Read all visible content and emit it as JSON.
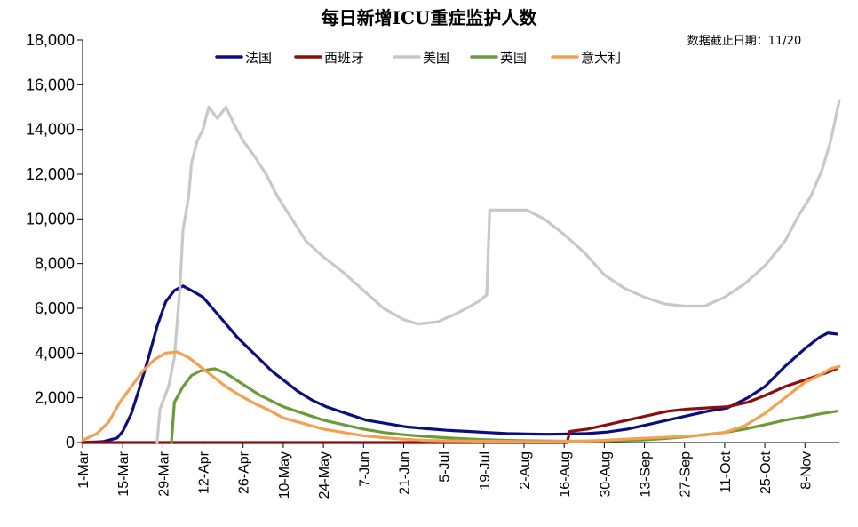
{
  "chart_data": {
    "type": "line",
    "title": "每日新增ICU重症监护人数",
    "annotation": "数据截止日期：11/20",
    "xlabel": "",
    "ylabel": "",
    "ylim": [
      0,
      18000
    ],
    "yticks": [
      0,
      2000,
      4000,
      6000,
      8000,
      10000,
      12000,
      14000,
      16000,
      18000
    ],
    "ytick_labels": [
      "0",
      "2,000",
      "4,000",
      "6,000",
      "8,000",
      "10,000",
      "12,000",
      "14,000",
      "16,000",
      "18,000"
    ],
    "xlim": [
      "2020-03-01",
      "2020-11-20"
    ],
    "xticks": [
      "2020-03-01",
      "2020-03-15",
      "2020-03-29",
      "2020-04-12",
      "2020-04-26",
      "2020-05-10",
      "2020-05-24",
      "2020-06-07",
      "2020-06-21",
      "2020-07-05",
      "2020-07-19",
      "2020-08-02",
      "2020-08-16",
      "2020-08-30",
      "2020-09-13",
      "2020-09-27",
      "2020-10-11",
      "2020-10-25",
      "2020-11-08"
    ],
    "xtick_labels": [
      "1-Mar",
      "15-Mar",
      "29-Mar",
      "12-Apr",
      "26-Apr",
      "10-May",
      "24-May",
      "7-Jun",
      "21-Jun",
      "5-Jul",
      "19-Jul",
      "2-Aug",
      "16-Aug",
      "30-Aug",
      "13-Sep",
      "27-Sep",
      "11-Oct",
      "25-Oct",
      "8-Nov"
    ],
    "grid": false,
    "legend_position": "top",
    "series": [
      {
        "name": "法国",
        "color": "#0d0d80",
        "points": [
          [
            "2020-03-01",
            0
          ],
          [
            "2020-03-08",
            40
          ],
          [
            "2020-03-13",
            200
          ],
          [
            "2020-03-15",
            500
          ],
          [
            "2020-03-18",
            1300
          ],
          [
            "2020-03-21",
            2500
          ],
          [
            "2020-03-24",
            3800
          ],
          [
            "2020-03-27",
            5200
          ],
          [
            "2020-03-30",
            6300
          ],
          [
            "2020-04-02",
            6800
          ],
          [
            "2020-04-05",
            7000
          ],
          [
            "2020-04-08",
            6800
          ],
          [
            "2020-04-12",
            6500
          ],
          [
            "2020-04-16",
            5900
          ],
          [
            "2020-04-20",
            5300
          ],
          [
            "2020-04-24",
            4700
          ],
          [
            "2020-04-28",
            4200
          ],
          [
            "2020-05-02",
            3700
          ],
          [
            "2020-05-06",
            3200
          ],
          [
            "2020-05-10",
            2800
          ],
          [
            "2020-05-15",
            2300
          ],
          [
            "2020-05-20",
            1900
          ],
          [
            "2020-05-25",
            1600
          ],
          [
            "2020-06-01",
            1300
          ],
          [
            "2020-06-08",
            1000
          ],
          [
            "2020-06-15",
            850
          ],
          [
            "2020-06-22",
            700
          ],
          [
            "2020-06-29",
            620
          ],
          [
            "2020-07-06",
            550
          ],
          [
            "2020-07-13",
            500
          ],
          [
            "2020-07-20",
            450
          ],
          [
            "2020-07-27",
            400
          ],
          [
            "2020-08-03",
            380
          ],
          [
            "2020-08-10",
            370
          ],
          [
            "2020-08-17",
            380
          ],
          [
            "2020-08-24",
            400
          ],
          [
            "2020-08-31",
            470
          ],
          [
            "2020-09-07",
            600
          ],
          [
            "2020-09-14",
            800
          ],
          [
            "2020-09-21",
            1000
          ],
          [
            "2020-09-28",
            1200
          ],
          [
            "2020-10-05",
            1400
          ],
          [
            "2020-10-12",
            1550
          ],
          [
            "2020-10-19",
            2000
          ],
          [
            "2020-10-25",
            2500
          ],
          [
            "2020-11-01",
            3400
          ],
          [
            "2020-11-08",
            4200
          ],
          [
            "2020-11-13",
            4700
          ],
          [
            "2020-11-16",
            4900
          ],
          [
            "2020-11-19",
            4850
          ]
        ]
      },
      {
        "name": "西班牙",
        "color": "#8b0e0e",
        "points": [
          [
            "2020-03-01",
            0
          ],
          [
            "2020-08-17",
            0
          ],
          [
            "2020-08-18",
            500
          ],
          [
            "2020-08-24",
            600
          ],
          [
            "2020-08-31",
            800
          ],
          [
            "2020-09-07",
            1000
          ],
          [
            "2020-09-14",
            1200
          ],
          [
            "2020-09-21",
            1400
          ],
          [
            "2020-09-28",
            1500
          ],
          [
            "2020-10-05",
            1550
          ],
          [
            "2020-10-12",
            1600
          ],
          [
            "2020-10-19",
            1800
          ],
          [
            "2020-10-25",
            2100
          ],
          [
            "2020-11-01",
            2500
          ],
          [
            "2020-11-08",
            2800
          ],
          [
            "2020-11-15",
            3100
          ],
          [
            "2020-11-19",
            3300
          ]
        ]
      },
      {
        "name": "美国",
        "color": "#c8c8c8",
        "points": [
          [
            "2020-03-27",
            0
          ],
          [
            "2020-03-28",
            1500
          ],
          [
            "2020-03-31",
            2500
          ],
          [
            "2020-04-02",
            3800
          ],
          [
            "2020-04-04",
            7000
          ],
          [
            "2020-04-05",
            9500
          ],
          [
            "2020-04-07",
            11000
          ],
          [
            "2020-04-08",
            12500
          ],
          [
            "2020-04-10",
            13500
          ],
          [
            "2020-04-12",
            14000
          ],
          [
            "2020-04-14",
            15000
          ],
          [
            "2020-04-17",
            14500
          ],
          [
            "2020-04-20",
            15000
          ],
          [
            "2020-04-23",
            14200
          ],
          [
            "2020-04-26",
            13500
          ],
          [
            "2020-04-30",
            12800
          ],
          [
            "2020-05-04",
            12000
          ],
          [
            "2020-05-08",
            11000
          ],
          [
            "2020-05-13",
            10000
          ],
          [
            "2020-05-18",
            9000
          ],
          [
            "2020-05-24",
            8300
          ],
          [
            "2020-05-31",
            7600
          ],
          [
            "2020-06-07",
            6800
          ],
          [
            "2020-06-14",
            6000
          ],
          [
            "2020-06-21",
            5500
          ],
          [
            "2020-06-26",
            5300
          ],
          [
            "2020-07-03",
            5400
          ],
          [
            "2020-07-10",
            5800
          ],
          [
            "2020-07-17",
            6300
          ],
          [
            "2020-07-20",
            6600
          ],
          [
            "2020-07-21",
            10400
          ],
          [
            "2020-07-27",
            10400
          ],
          [
            "2020-08-03",
            10400
          ],
          [
            "2020-08-09",
            10000
          ],
          [
            "2020-08-16",
            9300
          ],
          [
            "2020-08-23",
            8500
          ],
          [
            "2020-08-30",
            7500
          ],
          [
            "2020-09-06",
            6900
          ],
          [
            "2020-09-13",
            6500
          ],
          [
            "2020-09-20",
            6200
          ],
          [
            "2020-09-27",
            6100
          ],
          [
            "2020-10-04",
            6100
          ],
          [
            "2020-10-11",
            6500
          ],
          [
            "2020-10-18",
            7100
          ],
          [
            "2020-10-25",
            7900
          ],
          [
            "2020-11-01",
            9000
          ],
          [
            "2020-11-06",
            10200
          ],
          [
            "2020-11-10",
            11000
          ],
          [
            "2020-11-14",
            12200
          ],
          [
            "2020-11-17",
            13500
          ],
          [
            "2020-11-20",
            15300
          ]
        ]
      },
      {
        "name": "英国",
        "color": "#6b9a3a",
        "points": [
          [
            "2020-04-01",
            0
          ],
          [
            "2020-04-02",
            1800
          ],
          [
            "2020-04-05",
            2500
          ],
          [
            "2020-04-08",
            3000
          ],
          [
            "2020-04-11",
            3200
          ],
          [
            "2020-04-16",
            3300
          ],
          [
            "2020-04-20",
            3100
          ],
          [
            "2020-04-26",
            2600
          ],
          [
            "2020-05-02",
            2100
          ],
          [
            "2020-05-10",
            1600
          ],
          [
            "2020-05-17",
            1300
          ],
          [
            "2020-05-24",
            1000
          ],
          [
            "2020-05-31",
            800
          ],
          [
            "2020-06-07",
            600
          ],
          [
            "2020-06-14",
            450
          ],
          [
            "2020-06-21",
            350
          ],
          [
            "2020-06-28",
            280
          ],
          [
            "2020-07-05",
            220
          ],
          [
            "2020-07-12",
            170
          ],
          [
            "2020-07-19",
            130
          ],
          [
            "2020-07-26",
            100
          ],
          [
            "2020-08-02",
            80
          ],
          [
            "2020-08-09",
            70
          ],
          [
            "2020-08-16",
            60
          ],
          [
            "2020-08-23",
            60
          ],
          [
            "2020-08-30",
            70
          ],
          [
            "2020-09-06",
            90
          ],
          [
            "2020-09-13",
            120
          ],
          [
            "2020-09-20",
            180
          ],
          [
            "2020-09-27",
            250
          ],
          [
            "2020-10-04",
            350
          ],
          [
            "2020-10-11",
            450
          ],
          [
            "2020-10-18",
            600
          ],
          [
            "2020-10-25",
            800
          ],
          [
            "2020-11-01",
            1000
          ],
          [
            "2020-11-08",
            1150
          ],
          [
            "2020-11-14",
            1300
          ],
          [
            "2020-11-19",
            1400
          ]
        ]
      },
      {
        "name": "意大利",
        "color": "#f5a050",
        "points": [
          [
            "2020-03-01",
            100
          ],
          [
            "2020-03-06",
            400
          ],
          [
            "2020-03-10",
            900
          ],
          [
            "2020-03-14",
            1800
          ],
          [
            "2020-03-18",
            2500
          ],
          [
            "2020-03-22",
            3200
          ],
          [
            "2020-03-26",
            3700
          ],
          [
            "2020-03-30",
            4000
          ],
          [
            "2020-04-03",
            4050
          ],
          [
            "2020-04-07",
            3800
          ],
          [
            "2020-04-11",
            3400
          ],
          [
            "2020-04-15",
            3000
          ],
          [
            "2020-04-20",
            2500
          ],
          [
            "2020-04-25",
            2100
          ],
          [
            "2020-04-30",
            1750
          ],
          [
            "2020-05-05",
            1450
          ],
          [
            "2020-05-10",
            1100
          ],
          [
            "2020-05-17",
            850
          ],
          [
            "2020-05-24",
            600
          ],
          [
            "2020-05-31",
            450
          ],
          [
            "2020-06-07",
            300
          ],
          [
            "2020-06-14",
            220
          ],
          [
            "2020-06-21",
            150
          ],
          [
            "2020-06-28",
            100
          ],
          [
            "2020-07-05",
            80
          ],
          [
            "2020-07-12",
            70
          ],
          [
            "2020-07-19",
            60
          ],
          [
            "2020-07-26",
            50
          ],
          [
            "2020-08-02",
            45
          ],
          [
            "2020-08-09",
            45
          ],
          [
            "2020-08-16",
            55
          ],
          [
            "2020-08-23",
            70
          ],
          [
            "2020-08-30",
            100
          ],
          [
            "2020-09-06",
            150
          ],
          [
            "2020-09-13",
            190
          ],
          [
            "2020-09-20",
            230
          ],
          [
            "2020-09-27",
            280
          ],
          [
            "2020-10-04",
            330
          ],
          [
            "2020-10-11",
            450
          ],
          [
            "2020-10-18",
            750
          ],
          [
            "2020-10-25",
            1300
          ],
          [
            "2020-11-01",
            2000
          ],
          [
            "2020-11-08",
            2700
          ],
          [
            "2020-11-13",
            3000
          ],
          [
            "2020-11-17",
            3300
          ],
          [
            "2020-11-20",
            3400
          ]
        ]
      }
    ]
  }
}
